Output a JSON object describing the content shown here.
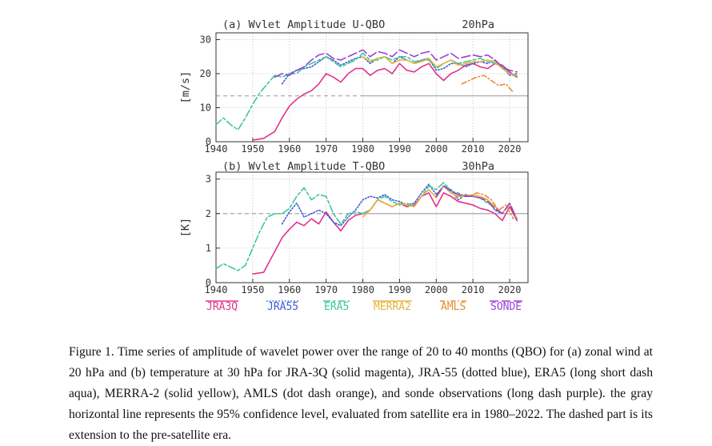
{
  "chart_data": [
    {
      "type": "line",
      "title": "(a) Wvlet Amplitude U-QBO",
      "level_label": "20hPa",
      "ylabel": "[m/s]",
      "xlim": [
        1940,
        2025
      ],
      "ylim": [
        0,
        32
      ],
      "xticks": [
        "1940",
        "1950",
        "1960",
        "1970",
        "1980",
        "1990",
        "2000",
        "2010",
        "2020"
      ],
      "yticks": [
        "0",
        "10",
        "20",
        "30"
      ],
      "threshold": {
        "value": 13.5,
        "solid_from": 1980,
        "dashed_to": 1940
      },
      "grid": true,
      "series": [
        {
          "name": "JRA3Q",
          "color": "#e0338c",
          "style": "solid",
          "x": [
            1950,
            1953,
            1956,
            1958,
            1960,
            1962,
            1964,
            1966,
            1968,
            1970,
            1972,
            1974,
            1976,
            1978,
            1980,
            1982,
            1984,
            1986,
            1988,
            1990,
            1992,
            1994,
            1996,
            1998,
            2000,
            2002,
            2004,
            2006,
            2008,
            2010,
            2012,
            2014,
            2016,
            2018,
            2020,
            2022
          ],
          "y": [
            0.5,
            1,
            3,
            7,
            10.5,
            12.5,
            14,
            15,
            17,
            20,
            19,
            17.5,
            20,
            21.5,
            21.5,
            19.5,
            21,
            21.5,
            20,
            23,
            21,
            20.5,
            22,
            23,
            20,
            18,
            20,
            21,
            22.5,
            23,
            22,
            21.5,
            23,
            22.5,
            20.5,
            19
          ]
        },
        {
          "name": "JRA55",
          "color": "#3b5fd8",
          "style": "dotted",
          "x": [
            1958,
            1960,
            1962,
            1964,
            1966,
            1968,
            1970,
            1972,
            1974,
            1976,
            1978,
            1980,
            1982,
            1984,
            1986,
            1988,
            1990,
            1992,
            1994,
            1996,
            1998,
            2000,
            2002,
            2004,
            2006,
            2008,
            2010,
            2012,
            2014,
            2016,
            2018,
            2020,
            2022
          ],
          "y": [
            17,
            20,
            21,
            21.5,
            22,
            23.5,
            25,
            24,
            22.5,
            23.5,
            24.5,
            25,
            23,
            24.5,
            25,
            23,
            25,
            24,
            23,
            24,
            24.5,
            21,
            21.5,
            23,
            23,
            22,
            23,
            23.5,
            23,
            24,
            22,
            19.5,
            20
          ]
        },
        {
          "name": "ERA5",
          "color": "#3ec896",
          "style": "longshortdash",
          "x": [
            1940,
            1942,
            1944,
            1946,
            1948,
            1950,
            1952,
            1954,
            1956,
            1958,
            1960,
            1962,
            1964,
            1966,
            1968,
            1970,
            1972,
            1974,
            1976,
            1978,
            1980,
            1982,
            1984,
            1986,
            1988,
            1990,
            1992,
            1994,
            1996,
            1998,
            2000,
            2002,
            2004,
            2006,
            2008,
            2010,
            2012,
            2014,
            2016,
            2018,
            2020,
            2022
          ],
          "y": [
            5,
            7,
            5,
            3.5,
            7,
            11,
            14.5,
            17,
            19.5,
            19,
            20,
            20,
            22,
            23,
            24,
            25,
            23.5,
            22,
            23,
            24,
            26,
            24,
            24,
            25,
            24,
            25,
            25,
            23.5,
            24,
            24,
            21.5,
            23,
            24,
            23,
            23.5,
            24,
            24.5,
            23.5,
            23,
            22,
            20,
            19
          ]
        },
        {
          "name": "MERRA2",
          "color": "#e6b33b",
          "style": "solid",
          "x": [
            1980,
            1982,
            1984,
            1986,
            1988,
            1990,
            1992,
            1994,
            1996,
            1998,
            2000,
            2002,
            2004,
            2006,
            2008,
            2010,
            2012,
            2014,
            2016,
            2018,
            2020,
            2022
          ],
          "y": [
            25,
            23.5,
            24.5,
            25,
            23,
            24,
            24,
            23,
            23.5,
            24.5,
            22,
            23,
            24,
            22.5,
            23,
            23.5,
            23.5,
            24,
            23.5,
            21.5,
            20,
            19.5
          ]
        },
        {
          "name": "AMLS",
          "color": "#e88c2e",
          "style": "dotdash",
          "x": [
            2007,
            2009,
            2011,
            2013,
            2015,
            2017,
            2019,
            2021
          ],
          "y": [
            17,
            18,
            19,
            19.5,
            18,
            16.5,
            17,
            14.5
          ]
        },
        {
          "name": "SONDE",
          "color": "#9b3fd4",
          "style": "longdash",
          "x": [
            1956,
            1958,
            1960,
            1962,
            1964,
            1966,
            1968,
            1970,
            1972,
            1974,
            1976,
            1978,
            1980,
            1982,
            1984,
            1986,
            1988,
            1990,
            1992,
            1994,
            1996,
            1998,
            2000,
            2002,
            2004,
            2006,
            2008,
            2010,
            2012,
            2014,
            2016,
            2018,
            2020,
            2022
          ],
          "y": [
            19,
            20,
            19.5,
            21,
            22,
            24,
            25.5,
            26,
            24.5,
            24,
            25,
            26,
            27,
            25,
            26.5,
            26,
            25,
            27,
            26,
            25,
            26,
            26.5,
            24,
            25,
            26,
            24.5,
            25,
            25.5,
            25,
            25.5,
            24,
            22,
            21,
            20.5
          ]
        }
      ]
    },
    {
      "type": "line",
      "title": "(b) Wvlet Amplitude T-QBO",
      "level_label": "30hPa",
      "ylabel": "[K]",
      "xlim": [
        1940,
        2025
      ],
      "ylim": [
        0,
        3.2
      ],
      "xticks": [
        "1940",
        "1950",
        "1960",
        "1970",
        "1980",
        "1990",
        "2000",
        "2010",
        "2020"
      ],
      "yticks": [
        "0",
        "1",
        "2",
        "3"
      ],
      "threshold": {
        "value": 2.0,
        "solid_from": 1980,
        "dashed_to": 1940
      },
      "grid": true,
      "series": [
        {
          "name": "JRA3Q",
          "color": "#e0338c",
          "style": "solid",
          "x": [
            1950,
            1953,
            1954,
            1956,
            1958,
            1960,
            1962,
            1964,
            1966,
            1968,
            1970,
            1972,
            1974,
            1976,
            1978,
            1980,
            1982,
            1984,
            1986,
            1988,
            1990,
            1992,
            1994,
            1996,
            1998,
            2000,
            2002,
            2004,
            2006,
            2008,
            2010,
            2012,
            2014,
            2016,
            2018,
            2020,
            2022
          ],
          "y": [
            0.25,
            0.3,
            0.5,
            0.9,
            1.3,
            1.55,
            1.75,
            1.65,
            1.85,
            1.7,
            2.05,
            1.75,
            1.5,
            1.8,
            1.95,
            2.0,
            2.1,
            2.4,
            2.3,
            2.2,
            2.3,
            2.2,
            2.25,
            2.5,
            2.6,
            2.2,
            2.6,
            2.5,
            2.35,
            2.3,
            2.25,
            2.15,
            2.1,
            2.0,
            1.8,
            2.2,
            1.8
          ]
        },
        {
          "name": "JRA55",
          "color": "#3b5fd8",
          "style": "dotted",
          "x": [
            1958,
            1960,
            1962,
            1964,
            1966,
            1968,
            1970,
            1972,
            1974,
            1976,
            1978,
            1980,
            1982,
            1984,
            1986,
            1988,
            1990,
            1992,
            1994,
            1996,
            1998,
            2000,
            2002,
            2004,
            2006,
            2008,
            2010,
            2012,
            2014,
            2016,
            2018,
            2020,
            2022
          ],
          "y": [
            1.7,
            2.05,
            2.3,
            1.9,
            2.0,
            2.1,
            2.0,
            1.75,
            1.65,
            1.9,
            2.1,
            2.4,
            2.5,
            2.45,
            2.55,
            2.4,
            2.35,
            2.25,
            2.3,
            2.6,
            2.85,
            2.55,
            2.8,
            2.7,
            2.4,
            2.55,
            2.5,
            2.45,
            2.4,
            2.1,
            2.0,
            2.3,
            1.85
          ]
        },
        {
          "name": "ERA5",
          "color": "#3ec896",
          "style": "longshortdash",
          "x": [
            1940,
            1942,
            1944,
            1946,
            1948,
            1950,
            1952,
            1954,
            1956,
            1958,
            1960,
            1962,
            1964,
            1966,
            1968,
            1970,
            1972,
            1974,
            1976,
            1978,
            1980,
            1982,
            1984,
            1986,
            1988,
            1990,
            1992,
            1994,
            1996,
            1998,
            2000,
            2002,
            2004,
            2006,
            2008,
            2010,
            2012,
            2014,
            2016,
            2018,
            2020,
            2022
          ],
          "y": [
            0.4,
            0.55,
            0.45,
            0.35,
            0.5,
            1.0,
            1.5,
            1.9,
            2.0,
            2.0,
            2.15,
            2.5,
            2.75,
            2.4,
            2.55,
            2.5,
            2.0,
            1.7,
            2.0,
            2.05,
            2.0,
            2.1,
            2.4,
            2.5,
            2.35,
            2.25,
            2.3,
            2.2,
            2.5,
            2.8,
            2.7,
            2.9,
            2.65,
            2.6,
            2.5,
            2.5,
            2.45,
            2.3,
            2.2,
            2.0,
            2.3,
            1.85
          ]
        },
        {
          "name": "MERRA2",
          "color": "#e6b33b",
          "style": "solid",
          "x": [
            1980,
            1982,
            1984,
            1986,
            1988,
            1990,
            1992,
            1994,
            1996,
            1998,
            2000,
            2002,
            2004,
            2006,
            2008,
            2010,
            2012,
            2014,
            2016,
            2018,
            2020,
            2022
          ],
          "y": [
            1.9,
            2.1,
            2.4,
            2.3,
            2.2,
            2.3,
            2.25,
            2.2,
            2.5,
            2.7,
            2.45,
            2.8,
            2.6,
            2.5,
            2.5,
            2.55,
            2.5,
            2.4,
            2.2,
            2.0,
            2.3,
            1.85
          ]
        },
        {
          "name": "AMLS",
          "color": "#e88c2e",
          "style": "dotdash",
          "x": [
            2005,
            2007,
            2009,
            2011,
            2013,
            2015,
            2017,
            2019,
            2021
          ],
          "y": [
            2.45,
            2.55,
            2.5,
            2.6,
            2.55,
            2.4,
            2.1,
            2.25,
            1.85
          ]
        },
        {
          "name": "SONDE",
          "color": "#9b3fd4",
          "style": "longdash",
          "x": [
            2000,
            2002,
            2004,
            2006,
            2008,
            2010,
            2012,
            2014,
            2016,
            2018,
            2020,
            2022
          ],
          "y": [
            2.5,
            2.8,
            2.65,
            2.55,
            2.5,
            2.5,
            2.45,
            2.35,
            2.15,
            2.0,
            2.3,
            1.8
          ]
        }
      ]
    }
  ],
  "legend": [
    "JRA3Q",
    "JRA55",
    "ERA5",
    "MERRA2",
    "AMLS",
    "SONDE"
  ],
  "caption": "Figure 1. Time series of amplitude of wavelet power over the range of 20 to 40 months (QBO) for (a) zonal wind at 20 hPa and (b) temperature at 30 hPa for JRA-3Q (solid magenta), JRA-55 (dotted blue), ERA5 (long short dash aqua), MERRA-2 (solid yellow), AMLS (dot dash orange), and sonde observations (long dash purple). the gray horizontal line represents the 95% confidence level, evaluated from satellite era in 1980–2022. The dashed part is its extension to the pre-satellite era."
}
